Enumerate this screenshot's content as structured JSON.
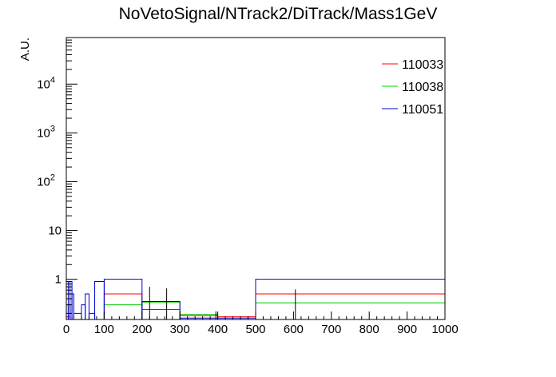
{
  "chart_data": {
    "type": "histogram",
    "title": "NoVetoSignal/NTrack2/DiTrack/Mass1GeV",
    "xlabel": "",
    "ylabel": "A.U.",
    "xlim": [
      0,
      1000
    ],
    "ylim": [
      0.15,
      90000
    ],
    "yscale": "log",
    "grid": false,
    "legend_position": "top-right",
    "x_ticks": [
      "0",
      "100",
      "200",
      "300",
      "400",
      "500",
      "600",
      "700",
      "800",
      "900",
      "1000"
    ],
    "y_ticks": [
      {
        "value": 1,
        "label": "1",
        "sup": ""
      },
      {
        "value": 10,
        "label": "10",
        "sup": ""
      },
      {
        "value": 100,
        "label": "10",
        "sup": "2"
      },
      {
        "value": 1000,
        "label": "10",
        "sup": "3"
      },
      {
        "value": 10000,
        "label": "10",
        "sup": "4"
      }
    ],
    "series": [
      {
        "name": "110033",
        "color": "#ff0000",
        "bins": [
          {
            "x0": 0,
            "x1": 10,
            "y": 0.17
          },
          {
            "x0": 100,
            "x1": 200,
            "y": 0.5
          },
          {
            "x0": 200,
            "x1": 300,
            "y": 0.24
          },
          {
            "x0": 300,
            "x1": 400,
            "y": 0.18
          },
          {
            "x0": 400,
            "x1": 500,
            "y": 0.17
          },
          {
            "x0": 500,
            "x1": 1000,
            "y": 0.5
          }
        ]
      },
      {
        "name": "110038",
        "color": "#00cc00",
        "bins": [
          {
            "x0": 100,
            "x1": 200,
            "y": 0.3
          },
          {
            "x0": 200,
            "x1": 300,
            "y": 0.34
          },
          {
            "x0": 300,
            "x1": 400,
            "y": 0.19
          },
          {
            "x0": 500,
            "x1": 1000,
            "y": 0.33
          }
        ]
      },
      {
        "name": "110051",
        "color": "#0000cc",
        "bins": [
          {
            "x0": 0,
            "x1": 5,
            "y": 0.9
          },
          {
            "x0": 5,
            "x1": 10,
            "y": 0.3
          },
          {
            "x0": 10,
            "x1": 15,
            "y": 0.9
          },
          {
            "x0": 15,
            "x1": 20,
            "y": 0.5
          },
          {
            "x0": 20,
            "x1": 40,
            "y": 0.2
          },
          {
            "x0": 40,
            "x1": 50,
            "y": 0.3
          },
          {
            "x0": 50,
            "x1": 60,
            "y": 0.5
          },
          {
            "x0": 60,
            "x1": 75,
            "y": 0.2
          },
          {
            "x0": 75,
            "x1": 100,
            "y": 0.9
          },
          {
            "x0": 100,
            "x1": 200,
            "y": 1.0
          },
          {
            "x0": 200,
            "x1": 300,
            "y": 0.35
          },
          {
            "x0": 300,
            "x1": 500,
            "y": 0.16
          },
          {
            "x0": 500,
            "x1": 1000,
            "y": 1.0
          }
        ]
      }
    ],
    "error_bars": [
      {
        "x": 220,
        "low": 0.15,
        "high": 0.7
      },
      {
        "x": 265,
        "low": 0.15,
        "high": 0.65
      },
      {
        "x": 605,
        "low": 0.15,
        "high": 0.62
      },
      {
        "x": 395,
        "low": 0.15,
        "high": 0.22
      }
    ]
  }
}
